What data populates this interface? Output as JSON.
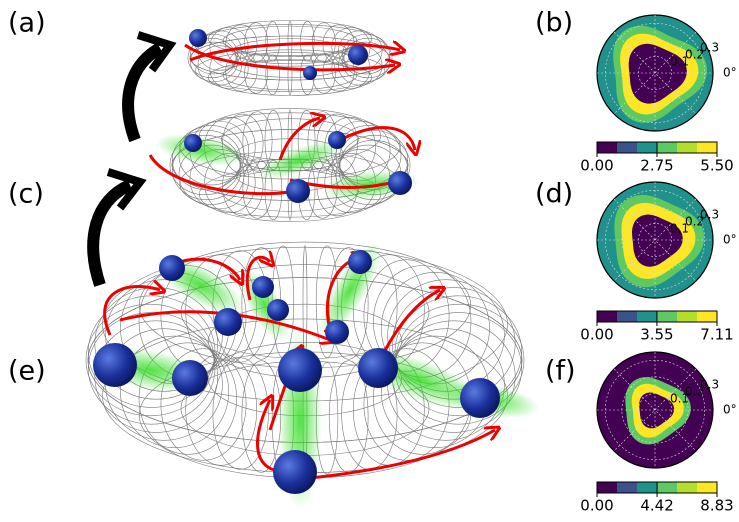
{
  "panels": [
    {
      "label": "(a)"
    },
    {
      "label": "(b)"
    },
    {
      "label": "(c)"
    },
    {
      "label": "(d)"
    },
    {
      "label": "(e)"
    },
    {
      "label": "(f)"
    }
  ],
  "polar_plots": [
    {
      "panel": "(b)",
      "rlim": [
        0,
        0.35
      ],
      "rticks": [
        0.1,
        0.2,
        0.3
      ],
      "angle_tick": {
        "value": 0,
        "label": "0°"
      },
      "clim": [
        0,
        5.5
      ],
      "cticks": [
        {
          "value": 0,
          "label": "0.00"
        },
        2.75,
        {
          "value": 5.5,
          "label": "5.50"
        }
      ]
    },
    {
      "panel": "(d)",
      "rlim": [
        0,
        0.35
      ],
      "rticks": [
        0.1,
        0.2,
        0.3
      ],
      "angle_tick": {
        "value": 0,
        "label": "0°"
      },
      "clim": [
        0,
        7.11
      ],
      "cticks": [
        {
          "value": 0,
          "label": "0.00"
        },
        3.55,
        7.11
      ]
    },
    {
      "panel": "(f)",
      "rlim": [
        0,
        0.35
      ],
      "rticks": [
        0.1,
        0.2,
        0.3
      ],
      "angle_tick": {
        "value": 0,
        "label": "0°"
      },
      "clim": [
        0,
        8.83
      ],
      "cticks": [
        {
          "value": 0,
          "label": "0.00"
        },
        4.42,
        8.83
      ]
    }
  ]
}
